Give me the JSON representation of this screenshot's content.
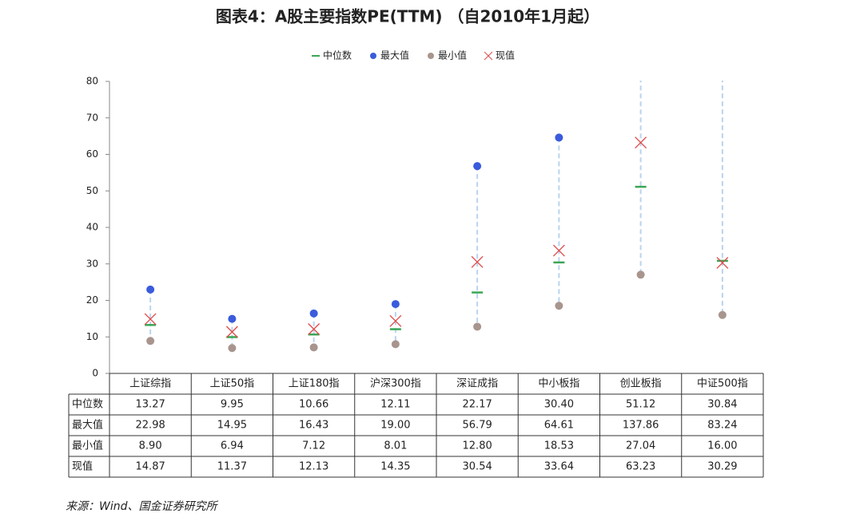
{
  "chart_data": {
    "type": "range",
    "title": "图表4：A股主要指数PE(TTM) （自2010年1月起）",
    "source": "来源：Wind、国金证券研究所",
    "categories": [
      "上证综指",
      "上证50指",
      "上证180指",
      "沪深300指",
      "深证成指",
      "中小板指",
      "创业板指",
      "中证500指"
    ],
    "series": [
      {
        "name": "中位数",
        "color": "#3aa655",
        "marker": "dash",
        "values": [
          13.27,
          9.95,
          10.66,
          12.11,
          22.17,
          30.4,
          51.12,
          30.84
        ],
        "value_labels": [
          "13.27",
          "9.95",
          "10.66",
          "12.11",
          "22.17",
          "30.40",
          "51.12",
          "30.84"
        ]
      },
      {
        "name": "最大值",
        "color": "#3a5bdc",
        "marker": "dot",
        "values": [
          22.98,
          14.95,
          16.43,
          19.0,
          56.79,
          64.61,
          137.86,
          83.24
        ],
        "value_labels": [
          "22.98",
          "14.95",
          "16.43",
          "19.00",
          "56.79",
          "64.61",
          "137.86",
          "83.24"
        ]
      },
      {
        "name": "最小值",
        "color": "#a8958e",
        "marker": "dot",
        "values": [
          8.9,
          6.94,
          7.12,
          8.01,
          12.8,
          18.53,
          27.04,
          16.0
        ],
        "value_labels": [
          "8.90",
          "6.94",
          "7.12",
          "8.01",
          "12.80",
          "18.53",
          "27.04",
          "16.00"
        ]
      },
      {
        "name": "现值",
        "color": "#e04848",
        "marker": "x",
        "values": [
          14.87,
          11.37,
          12.13,
          14.35,
          30.54,
          33.64,
          63.23,
          30.29
        ],
        "value_labels": [
          "14.87",
          "11.37",
          "12.13",
          "14.35",
          "30.54",
          "33.64",
          "63.23",
          "30.29"
        ]
      }
    ],
    "range_color": "#b9d3f0",
    "ylim": [
      0,
      80
    ],
    "yticks": [
      0,
      10,
      20,
      30,
      40,
      50,
      60,
      70,
      80
    ],
    "legend": "top"
  }
}
